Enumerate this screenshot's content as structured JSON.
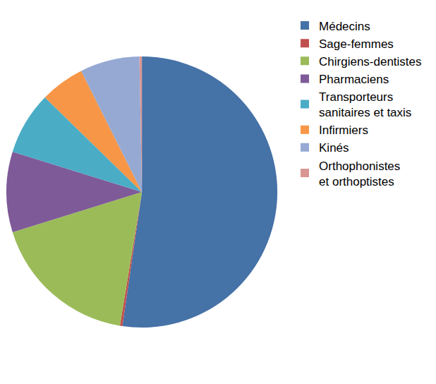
{
  "chart_data": {
    "type": "pie",
    "categories": [
      "Médecins",
      "Sage-femmes",
      "Chirgiens-dentistes",
      "Pharmaciens",
      "Transporteurs sanitaires et taxis",
      "Infirmiers",
      "Kinés",
      "Orthophonistes et orthoptistes"
    ],
    "values": [
      52.3,
      0.3,
      17.6,
      9.6,
      7.5,
      5.3,
      7.1,
      0.3
    ],
    "colors": [
      "#4572A7",
      "#C0504D",
      "#9BBB59",
      "#7E5A98",
      "#4BACC6",
      "#F79646",
      "#95A9D3",
      "#D99694"
    ],
    "legend": "right",
    "data_labels": false
  }
}
